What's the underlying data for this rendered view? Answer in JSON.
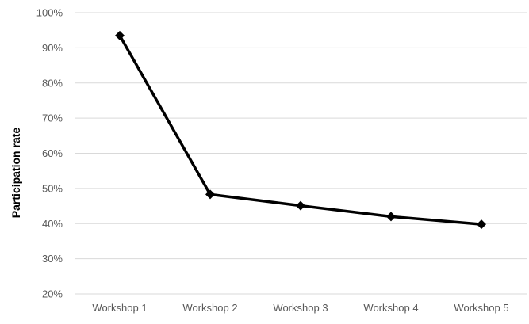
{
  "chart_data": {
    "type": "line",
    "title": "",
    "xlabel": "",
    "ylabel": "Participation rate",
    "categories": [
      "Workshop 1",
      "Workshop 2",
      "Workshop 3",
      "Workshop 4",
      "Workshop 5"
    ],
    "series": [
      {
        "values": [
          93.5,
          48.3,
          45.1,
          42.0,
          39.8
        ],
        "color": "#000000",
        "marker": "diamond"
      }
    ],
    "ylim": [
      20,
      100
    ],
    "yticks": [
      20,
      30,
      40,
      50,
      60,
      70,
      80,
      90,
      100
    ],
    "ytick_labels": [
      "20%",
      "30%",
      "40%",
      "50%",
      "60%",
      "70%",
      "80%",
      "90%",
      "100%"
    ],
    "grid": true,
    "grid_color": "#d9d9d9",
    "legend": "none"
  }
}
